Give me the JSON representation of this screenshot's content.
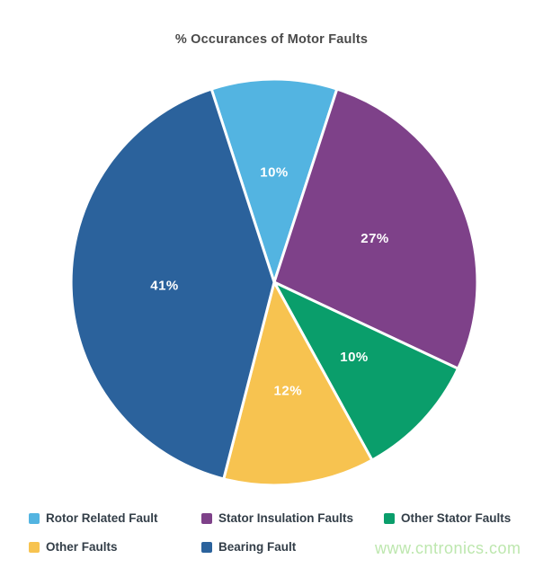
{
  "chart_data": {
    "type": "pie",
    "title": "% Occurances of Motor Faults",
    "slices": [
      {
        "label": "Rotor Related Fault",
        "value": 10,
        "color": "#53B4E1"
      },
      {
        "label": "Stator Insulation Faults",
        "value": 27,
        "color": "#7E4189"
      },
      {
        "label": "Other Stator Faults",
        "value": 10,
        "color": "#0A9E6B"
      },
      {
        "label": "Other Faults",
        "value": 12,
        "color": "#F7C350"
      },
      {
        "label": "Bearing Fault",
        "value": 41,
        "color": "#2B629C"
      }
    ],
    "value_suffix": "%",
    "start_angle_deg": -18,
    "slice_border_color": "#FFFFFF",
    "value_label_color": "#FFFFFF",
    "title_color": "#4A4A4A",
    "legend_text_color": "#333E48",
    "legend_position": "bottom"
  },
  "watermark": {
    "text": "www.cntronics.com",
    "color": "#BDE7AE"
  }
}
